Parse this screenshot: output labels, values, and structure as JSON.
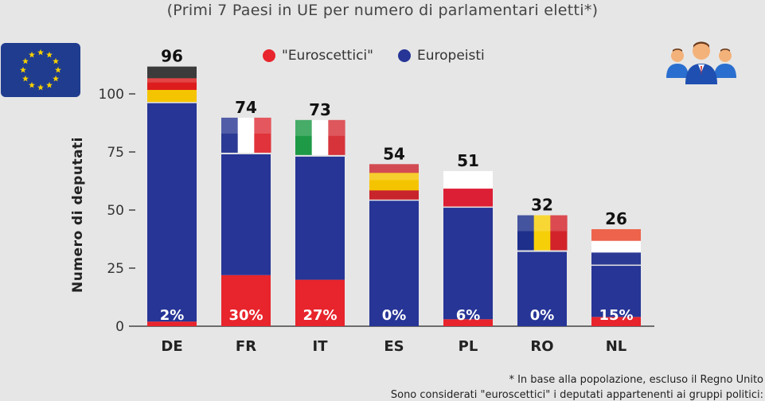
{
  "subtitle": "(Primi 7 Paesi in UE per numero di parlamentari eletti*)",
  "legend": {
    "euroscettici": "\"Euroscettici\"",
    "europeisti": "Europeisti"
  },
  "colors": {
    "euroscettici": "#e8242c",
    "europeisti": "#263596",
    "eu_blue": "#1f3c8f",
    "eu_star": "#f6d000"
  },
  "icons": [
    "eu-flag-icon",
    "people-group-icon"
  ],
  "footnotes": {
    "line1": "* In base alla popolazione, escluso il Regno Unito",
    "line2": "Sono considerati \"euroscettici\" i deputati appartenenti ai gruppi politici:"
  },
  "chart_data": {
    "type": "bar",
    "stacked": true,
    "categories": [
      "DE",
      "FR",
      "IT",
      "ES",
      "PL",
      "RO",
      "NL"
    ],
    "totals": [
      96,
      74,
      73,
      54,
      51,
      32,
      26
    ],
    "percent_labels": [
      "2%",
      "30%",
      "27%",
      "0%",
      "6%",
      "0%",
      "15%"
    ],
    "series": [
      {
        "name": "\"Euroscettici\"",
        "values": [
          2,
          22,
          20,
          0,
          3,
          0,
          4
        ]
      },
      {
        "name": "Europeisti",
        "values": [
          94,
          52,
          53,
          54,
          48,
          32,
          22
        ]
      }
    ],
    "ylabel": "Numero di deputati",
    "xlabel": "",
    "ylim": [
      0,
      100
    ],
    "yticks": [
      0,
      25,
      50,
      75,
      100
    ],
    "grid": false,
    "legend_position": "top"
  }
}
